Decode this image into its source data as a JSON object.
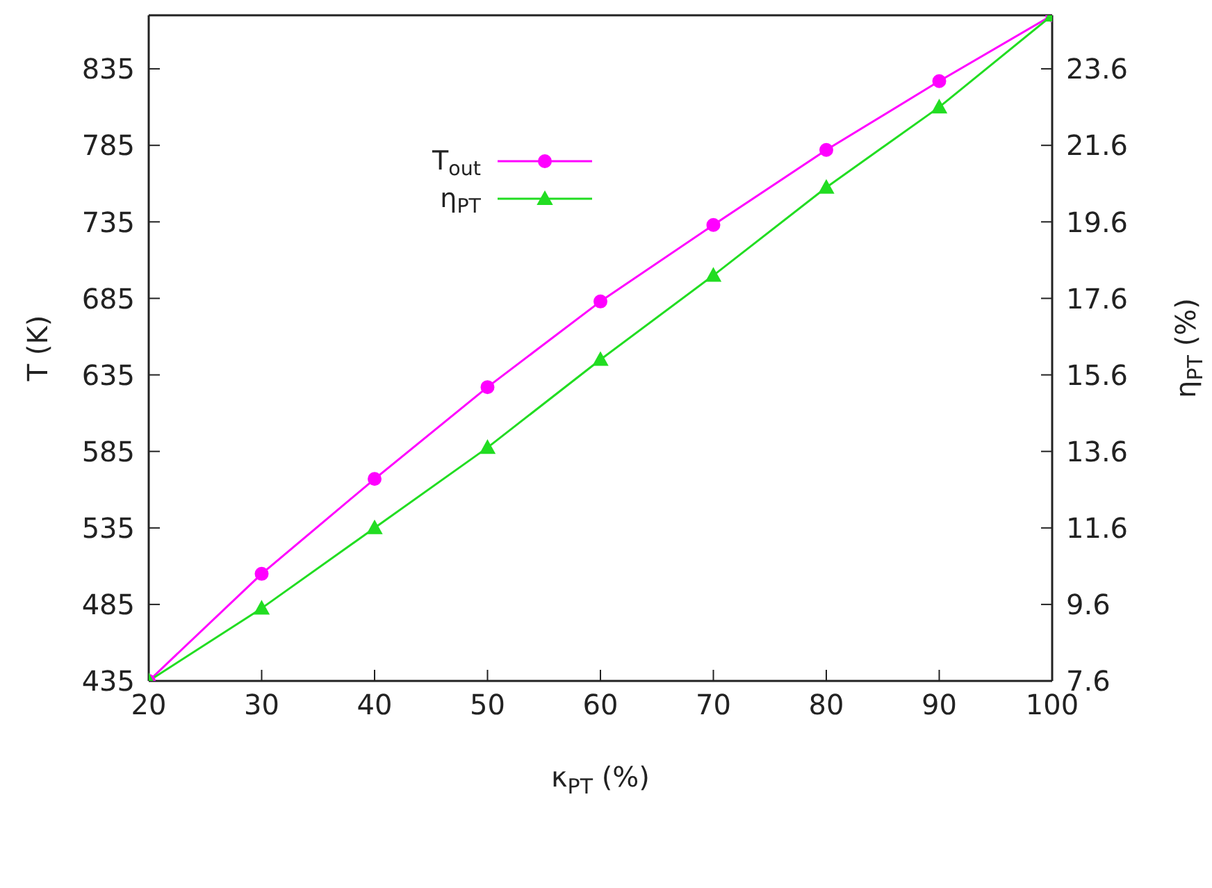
{
  "chart_data": {
    "type": "line",
    "xlabel": "κ$_{PT}$ (%)",
    "ylabel": "T (K)",
    "y2label": "η$_{PT}$ (%)",
    "x": [
      20,
      30,
      40,
      50,
      60,
      70,
      80,
      90,
      100
    ],
    "xlim": [
      20,
      100
    ],
    "xticks": [
      20,
      30,
      40,
      50,
      60,
      70,
      80,
      90,
      100
    ],
    "ylim": [
      435,
      870
    ],
    "yticks": [
      435,
      485,
      535,
      585,
      635,
      685,
      735,
      785,
      835
    ],
    "y2lim": [
      7.6,
      25
    ],
    "y2ticks": [
      7.6,
      9.6,
      11.6,
      13.6,
      15.6,
      17.6,
      19.6,
      21.6,
      23.6
    ],
    "legend": "top",
    "series": [
      {
        "name": "T$_{out}$",
        "color": "#ff00ff",
        "marker": "circle",
        "values": [
          435,
          505,
          567,
          627,
          683,
          733,
          782,
          827,
          870
        ]
      },
      {
        "name": "η$_{PT}$",
        "color": "#22dd22",
        "marker": "triangle",
        "axis": "y2",
        "values": [
          7.6,
          9.5,
          11.6,
          13.7,
          16.0,
          18.2,
          20.5,
          22.6,
          25.0
        ]
      }
    ]
  }
}
